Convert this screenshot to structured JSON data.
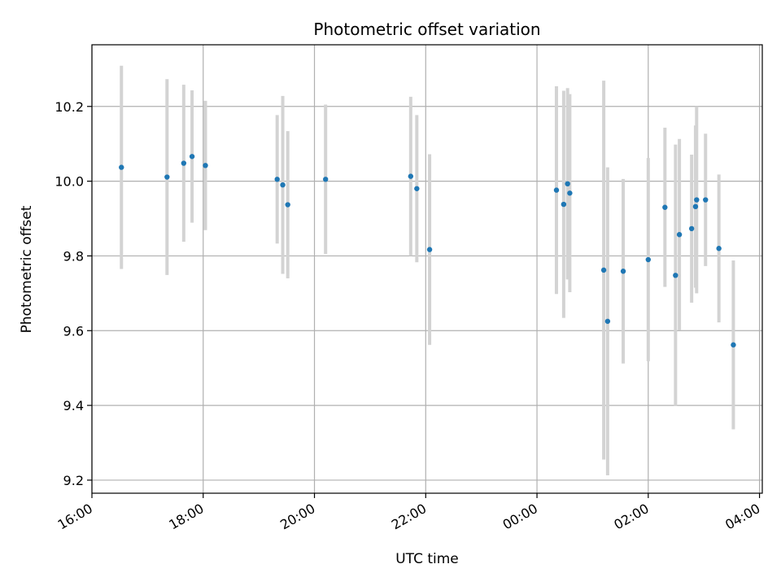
{
  "chart_data": {
    "type": "scatter",
    "title": "Photometric offset variation",
    "xlabel": "UTC time",
    "ylabel": "Photometric offset",
    "x_unit": "hours, 16:00 on day 1 to 04:00 on day 2 (values past 24 are the next day)",
    "xlim": [
      16.0,
      28.05
    ],
    "ylim": [
      9.165,
      10.365
    ],
    "x_ticks": [
      16,
      18,
      20,
      22,
      24,
      26,
      28
    ],
    "x_tick_labels": [
      "16:00",
      "18:00",
      "20:00",
      "22:00",
      "00:00",
      "02:00",
      "04:00"
    ],
    "y_ticks": [
      9.2,
      9.4,
      9.6,
      9.8,
      10.0,
      10.2
    ],
    "y_tick_labels": [
      "9.2",
      "9.4",
      "9.6",
      "9.8",
      "10.0",
      "10.2"
    ],
    "grid": true,
    "colors": {
      "point": "#1f77b4",
      "errorbar": "#d3d3d3",
      "grid": "#b0b0b0"
    },
    "points": [
      {
        "x": 16.53,
        "y": 10.037,
        "err": 0.272
      },
      {
        "x": 17.35,
        "y": 10.011,
        "err": 0.262
      },
      {
        "x": 17.65,
        "y": 10.048,
        "err": 0.21
      },
      {
        "x": 17.8,
        "y": 10.066,
        "err": 0.177
      },
      {
        "x": 18.04,
        "y": 10.042,
        "err": 0.173
      },
      {
        "x": 19.33,
        "y": 10.005,
        "err": 0.172
      },
      {
        "x": 19.43,
        "y": 9.99,
        "err": 0.238
      },
      {
        "x": 19.52,
        "y": 9.937,
        "err": 0.197
      },
      {
        "x": 20.2,
        "y": 10.005,
        "err": 0.2
      },
      {
        "x": 21.73,
        "y": 10.013,
        "err": 0.213
      },
      {
        "x": 21.84,
        "y": 9.98,
        "err": 0.197
      },
      {
        "x": 22.07,
        "y": 9.817,
        "err": 0.255
      },
      {
        "x": 24.35,
        "y": 9.976,
        "err": 0.278
      },
      {
        "x": 24.48,
        "y": 9.938,
        "err": 0.304
      },
      {
        "x": 24.55,
        "y": 9.993,
        "err": 0.256
      },
      {
        "x": 24.59,
        "y": 9.968,
        "err": 0.265
      },
      {
        "x": 25.2,
        "y": 9.762,
        "err": 0.507
      },
      {
        "x": 25.27,
        "y": 9.625,
        "err": 0.412
      },
      {
        "x": 25.55,
        "y": 9.759,
        "err": 0.247
      },
      {
        "x": 26.0,
        "y": 9.79,
        "err": 0.272
      },
      {
        "x": 26.3,
        "y": 9.93,
        "err": 0.213
      },
      {
        "x": 26.49,
        "y": 9.748,
        "err": 0.35
      },
      {
        "x": 26.56,
        "y": 9.857,
        "err": 0.256
      },
      {
        "x": 26.78,
        "y": 9.873,
        "err": 0.198
      },
      {
        "x": 26.85,
        "y": 9.932,
        "err": 0.217
      },
      {
        "x": 26.87,
        "y": 9.95,
        "err": 0.25
      },
      {
        "x": 27.03,
        "y": 9.95,
        "err": 0.177
      },
      {
        "x": 27.27,
        "y": 9.82,
        "err": 0.198
      },
      {
        "x": 27.53,
        "y": 9.562,
        "err": 0.226
      }
    ]
  }
}
